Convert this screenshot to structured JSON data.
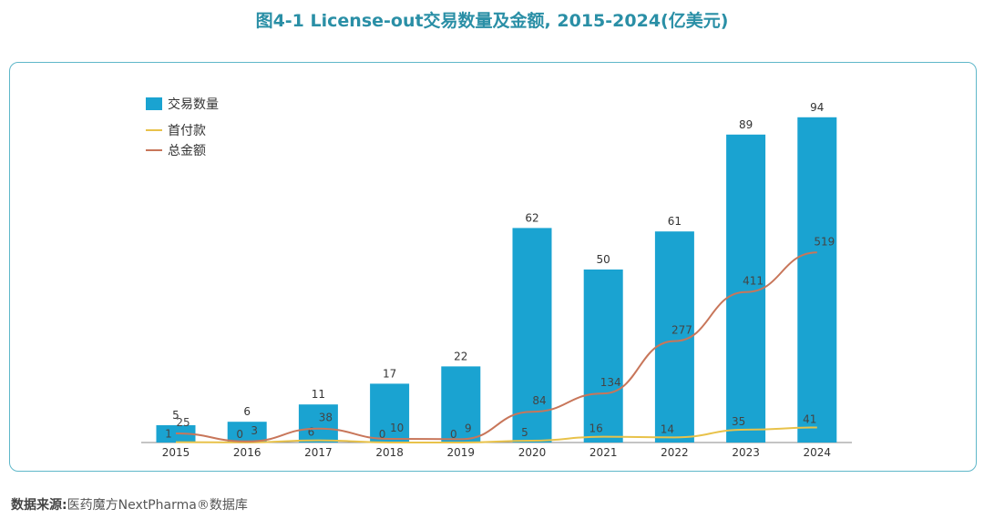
{
  "title": "图4-1 License-out交易数量及金额, 2015-2024(亿美元)",
  "source_label": "数据来源:",
  "source_text": "医药魔方NextPharma®数据库",
  "chart_data": {
    "type": "bar",
    "categories": [
      "2015",
      "2016",
      "2017",
      "2018",
      "2019",
      "2020",
      "2021",
      "2022",
      "2023",
      "2024"
    ],
    "series": [
      {
        "name": "交易数量",
        "type": "bar",
        "color": "#1aa3d1",
        "values": [
          5,
          6,
          11,
          17,
          22,
          62,
          50,
          61,
          89,
          94
        ]
      },
      {
        "name": "首付款",
        "type": "line",
        "color": "#e8c24a",
        "values": [
          1,
          0,
          6,
          0,
          0,
          5,
          16,
          14,
          35,
          41
        ]
      },
      {
        "name": "总金额",
        "type": "line",
        "color": "#c8765a",
        "values": [
          25,
          3,
          38,
          10,
          9,
          84,
          134,
          277,
          411,
          519
        ]
      }
    ],
    "legend": "top-left",
    "grid": false
  }
}
